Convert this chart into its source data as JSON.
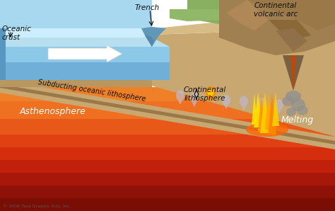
{
  "labels": {
    "oceanic_crust": "Oceanic\ncrust",
    "trench": "Trench",
    "continental_volcanic_arc": "Continental\nvolcanic arc",
    "subducting": "Subducting oceanic lithosphere",
    "continental_lithosphere": "Continental\nlithosphere",
    "asthenosphere": "Asthenosphere",
    "melting": "Melting",
    "copyright": "© 2009 Tasa Graphic Arts, Inc."
  },
  "colors": {
    "background": "#f0ede0",
    "text_dark": "#111111",
    "white": "#ffffff"
  },
  "figsize": [
    4.74,
    2.98
  ],
  "dpi": 100
}
